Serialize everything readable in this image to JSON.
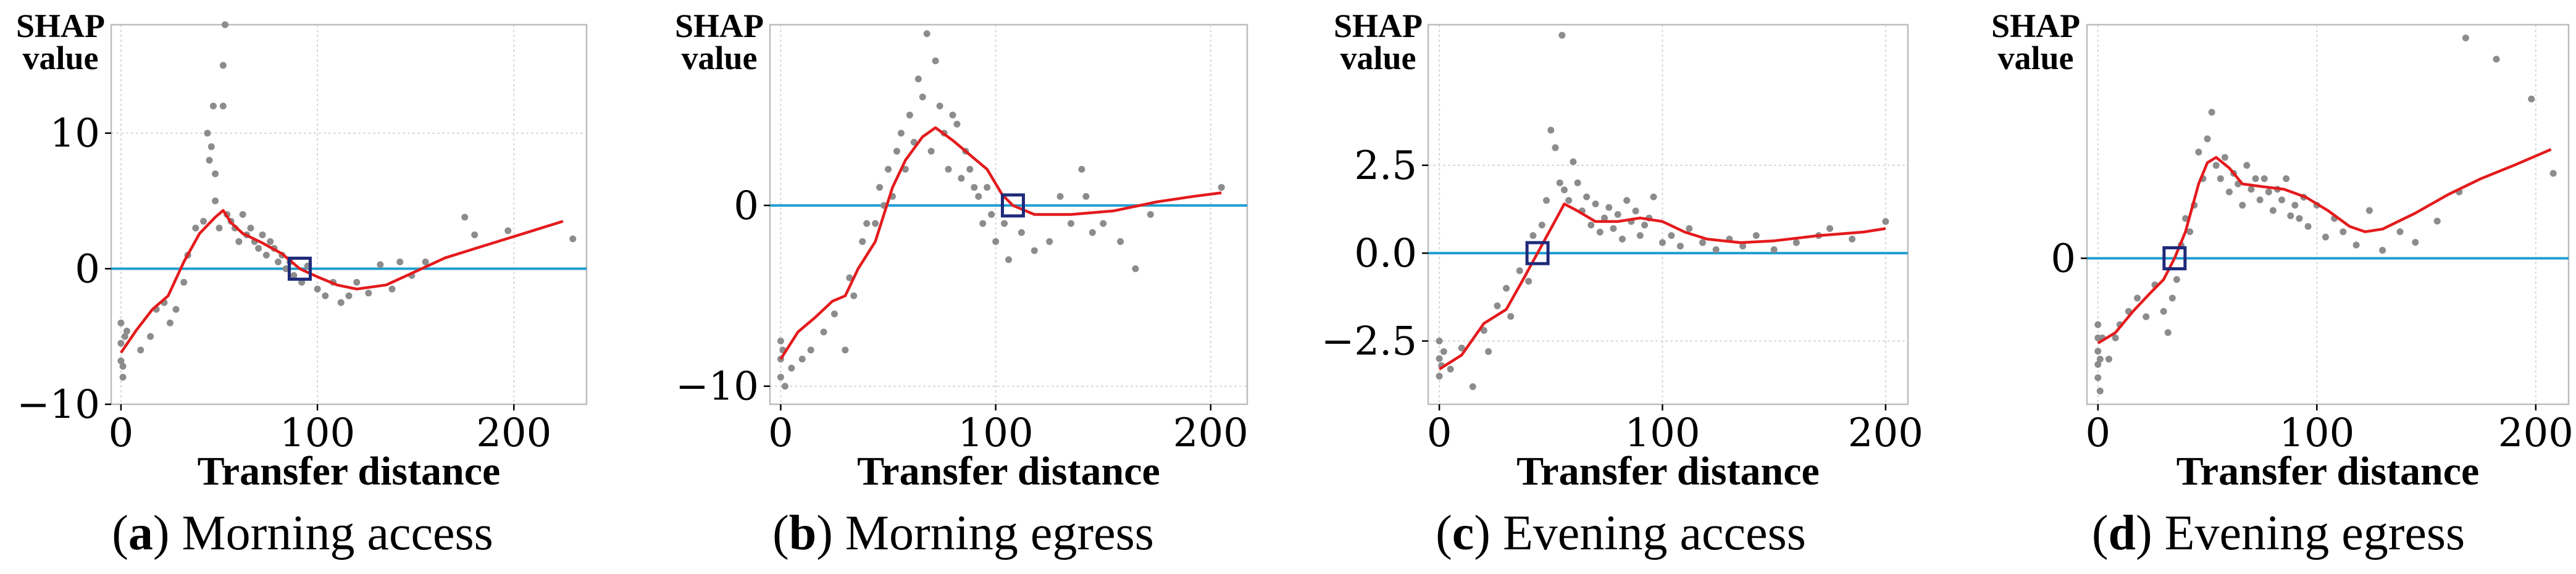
{
  "figure": {
    "background": "#ffffff"
  },
  "style": {
    "scatter": "#8c8c8c",
    "trend": "#e41a1c",
    "baseline": "#1f9ed1",
    "marker": "#1f2a7a",
    "grid": "#d9d9d9",
    "frame": "#bdbdbd"
  },
  "chart_data": [
    {
      "type": "scatter",
      "panel_label": "a",
      "title": "Morning access",
      "ylabel_line1": "SHAP",
      "ylabel_line2": "value",
      "xlabel": "Transfer distance",
      "xlim": [
        -5,
        237
      ],
      "ylim": [
        -10,
        18
      ],
      "xticks": [
        0,
        100,
        200
      ],
      "yticks": [
        -10,
        0,
        10
      ],
      "ytick_labels": [
        "−10",
        "0",
        "10"
      ],
      "baseline": 0,
      "marker_point": [
        91,
        0
      ],
      "trend": [
        [
          0,
          -6.2
        ],
        [
          8,
          -4.5
        ],
        [
          16,
          -3
        ],
        [
          24,
          -2
        ],
        [
          32,
          0.5
        ],
        [
          40,
          2.6
        ],
        [
          48,
          3.8
        ],
        [
          52,
          4.3
        ],
        [
          56,
          3.4
        ],
        [
          62,
          2.6
        ],
        [
          72,
          1.9
        ],
        [
          82,
          1.1
        ],
        [
          91,
          0
        ],
        [
          100,
          -0.6
        ],
        [
          110,
          -1.2
        ],
        [
          120,
          -1.5
        ],
        [
          135,
          -1.2
        ],
        [
          150,
          -0.2
        ],
        [
          165,
          0.8
        ],
        [
          185,
          1.7
        ],
        [
          205,
          2.6
        ],
        [
          225,
          3.5
        ]
      ],
      "points": [
        [
          0,
          -4
        ],
        [
          0,
          -5.5
        ],
        [
          0,
          -6.8
        ],
        [
          1,
          -8
        ],
        [
          1,
          -7.2
        ],
        [
          2,
          -5
        ],
        [
          3,
          -4.6
        ],
        [
          10,
          -6
        ],
        [
          15,
          -5
        ],
        [
          18,
          -3
        ],
        [
          22,
          -2.5
        ],
        [
          25,
          -4
        ],
        [
          28,
          -3
        ],
        [
          32,
          -1
        ],
        [
          34,
          1
        ],
        [
          38,
          3
        ],
        [
          42,
          3.5
        ],
        [
          44,
          10
        ],
        [
          45,
          8
        ],
        [
          46,
          9
        ],
        [
          47,
          12
        ],
        [
          48,
          7
        ],
        [
          48,
          5
        ],
        [
          50,
          3
        ],
        [
          52,
          15
        ],
        [
          52,
          12
        ],
        [
          53,
          18
        ],
        [
          54,
          4
        ],
        [
          56,
          3.5
        ],
        [
          58,
          3
        ],
        [
          60,
          2
        ],
        [
          62,
          4
        ],
        [
          64,
          2.5
        ],
        [
          66,
          3
        ],
        [
          68,
          2
        ],
        [
          70,
          1.5
        ],
        [
          72,
          2.5
        ],
        [
          74,
          1
        ],
        [
          76,
          2
        ],
        [
          78,
          1.5
        ],
        [
          80,
          0.5
        ],
        [
          82,
          1
        ],
        [
          84,
          0
        ],
        [
          86,
          0.5
        ],
        [
          88,
          -0.5
        ],
        [
          92,
          -1
        ],
        [
          95,
          0.2
        ],
        [
          100,
          -1.5
        ],
        [
          104,
          -2
        ],
        [
          108,
          -1
        ],
        [
          112,
          -2.5
        ],
        [
          116,
          -2
        ],
        [
          120,
          -1
        ],
        [
          126,
          -1.8
        ],
        [
          132,
          0.3
        ],
        [
          138,
          -1.5
        ],
        [
          142,
          0.5
        ],
        [
          148,
          -0.5
        ],
        [
          155,
          0.5
        ],
        [
          175,
          3.8
        ],
        [
          180,
          2.5
        ],
        [
          197,
          2.8
        ],
        [
          230,
          2.2
        ]
      ]
    },
    {
      "type": "scatter",
      "panel_label": "b",
      "title": "Morning egress",
      "ylabel_line1": "SHAP",
      "ylabel_line2": "value",
      "xlabel": "Transfer distance",
      "xlim": [
        -5,
        217
      ],
      "ylim": [
        -11,
        10
      ],
      "xticks": [
        0,
        100,
        200
      ],
      "yticks": [
        -10,
        0
      ],
      "ytick_labels": [
        "−10",
        "0"
      ],
      "baseline": 0,
      "marker_point": [
        108,
        0
      ],
      "trend": [
        [
          0,
          -8.5
        ],
        [
          8,
          -7
        ],
        [
          16,
          -6.2
        ],
        [
          24,
          -5.3
        ],
        [
          30,
          -5
        ],
        [
          36,
          -3.5
        ],
        [
          44,
          -2
        ],
        [
          52,
          1
        ],
        [
          58,
          2.5
        ],
        [
          66,
          3.8
        ],
        [
          72,
          4.3
        ],
        [
          80,
          3.6
        ],
        [
          88,
          2.8
        ],
        [
          96,
          2
        ],
        [
          103,
          0.6
        ],
        [
          108,
          0
        ],
        [
          118,
          -0.5
        ],
        [
          135,
          -0.5
        ],
        [
          155,
          -0.3
        ],
        [
          175,
          0.2
        ],
        [
          192,
          0.5
        ],
        [
          205,
          0.7
        ]
      ],
      "points": [
        [
          0,
          -7.5
        ],
        [
          0,
          -8.5
        ],
        [
          0,
          -9.5
        ],
        [
          1,
          -8
        ],
        [
          2,
          -10
        ],
        [
          5,
          -9
        ],
        [
          10,
          -8.5
        ],
        [
          14,
          -8
        ],
        [
          20,
          -7
        ],
        [
          25,
          -6
        ],
        [
          30,
          -8
        ],
        [
          32,
          -4
        ],
        [
          34,
          -5
        ],
        [
          38,
          -2
        ],
        [
          40,
          -1
        ],
        [
          44,
          -1
        ],
        [
          46,
          1
        ],
        [
          48,
          0
        ],
        [
          50,
          2
        ],
        [
          52,
          0.5
        ],
        [
          54,
          3
        ],
        [
          56,
          4
        ],
        [
          58,
          2
        ],
        [
          60,
          5
        ],
        [
          62,
          3.5
        ],
        [
          64,
          7
        ],
        [
          66,
          6
        ],
        [
          68,
          9.5
        ],
        [
          70,
          3
        ],
        [
          72,
          8
        ],
        [
          74,
          5.5
        ],
        [
          76,
          4
        ],
        [
          78,
          2
        ],
        [
          80,
          5
        ],
        [
          82,
          4.5
        ],
        [
          84,
          1.5
        ],
        [
          86,
          3
        ],
        [
          88,
          2
        ],
        [
          90,
          1
        ],
        [
          92,
          0.5
        ],
        [
          94,
          -1
        ],
        [
          96,
          1
        ],
        [
          98,
          -0.5
        ],
        [
          100,
          -2
        ],
        [
          104,
          -1
        ],
        [
          106,
          -3
        ],
        [
          112,
          -1.5
        ],
        [
          118,
          -2.5
        ],
        [
          125,
          -2
        ],
        [
          130,
          0.5
        ],
        [
          135,
          -1
        ],
        [
          140,
          2
        ],
        [
          142,
          0.5
        ],
        [
          145,
          -1.5
        ],
        [
          150,
          -1
        ],
        [
          158,
          -2
        ],
        [
          165,
          -3.5
        ],
        [
          172,
          -0.5
        ],
        [
          205,
          1
        ]
      ]
    },
    {
      "type": "scatter",
      "panel_label": "c",
      "title": "Evening access",
      "ylabel_line1": "SHAP",
      "ylabel_line2": "value",
      "xlabel": "Transfer distance",
      "xlim": [
        -5,
        210
      ],
      "ylim": [
        -4.3,
        6.5
      ],
      "xticks": [
        0,
        100,
        200
      ],
      "yticks": [
        -2.5,
        0,
        2.5
      ],
      "ytick_labels": [
        "−2.5",
        "0.0",
        "2.5"
      ],
      "baseline": 0,
      "marker_point": [
        44,
        0
      ],
      "trend": [
        [
          0,
          -3.3
        ],
        [
          10,
          -2.9
        ],
        [
          20,
          -2
        ],
        [
          30,
          -1.6
        ],
        [
          38,
          -0.7
        ],
        [
          44,
          0
        ],
        [
          50,
          0.7
        ],
        [
          56,
          1.4
        ],
        [
          62,
          1.2
        ],
        [
          70,
          0.9
        ],
        [
          80,
          0.9
        ],
        [
          90,
          1
        ],
        [
          100,
          0.9
        ],
        [
          110,
          0.6
        ],
        [
          120,
          0.4
        ],
        [
          135,
          0.3
        ],
        [
          150,
          0.35
        ],
        [
          170,
          0.5
        ],
        [
          190,
          0.6
        ],
        [
          200,
          0.7
        ]
      ],
      "points": [
        [
          0,
          -2.5
        ],
        [
          0,
          -3
        ],
        [
          0,
          -3.5
        ],
        [
          1,
          -3.2
        ],
        [
          2,
          -2.8
        ],
        [
          5,
          -3.3
        ],
        [
          10,
          -2.7
        ],
        [
          15,
          -3.8
        ],
        [
          20,
          -2.2
        ],
        [
          22,
          -2.8
        ],
        [
          26,
          -1.5
        ],
        [
          30,
          -1
        ],
        [
          32,
          -1.8
        ],
        [
          36,
          -0.5
        ],
        [
          40,
          -0.8
        ],
        [
          42,
          0.5
        ],
        [
          46,
          0.8
        ],
        [
          48,
          1.5
        ],
        [
          50,
          3.5
        ],
        [
          52,
          3
        ],
        [
          54,
          2
        ],
        [
          55,
          6.2
        ],
        [
          56,
          1.8
        ],
        [
          58,
          1.5
        ],
        [
          60,
          2.6
        ],
        [
          62,
          2
        ],
        [
          64,
          1.2
        ],
        [
          66,
          1.6
        ],
        [
          68,
          0.8
        ],
        [
          70,
          1.4
        ],
        [
          72,
          0.6
        ],
        [
          74,
          1
        ],
        [
          76,
          1.3
        ],
        [
          78,
          0.7
        ],
        [
          80,
          1.1
        ],
        [
          82,
          0.4
        ],
        [
          84,
          1.5
        ],
        [
          86,
          0.9
        ],
        [
          88,
          1.2
        ],
        [
          90,
          0.5
        ],
        [
          92,
          0.8
        ],
        [
          94,
          1
        ],
        [
          96,
          1.6
        ],
        [
          100,
          0.3
        ],
        [
          104,
          0.5
        ],
        [
          108,
          0.2
        ],
        [
          112,
          0.7
        ],
        [
          118,
          0.3
        ],
        [
          124,
          0.1
        ],
        [
          130,
          0.4
        ],
        [
          136,
          0.2
        ],
        [
          142,
          0.5
        ],
        [
          150,
          0.1
        ],
        [
          160,
          0.3
        ],
        [
          170,
          0.5
        ],
        [
          175,
          0.7
        ],
        [
          185,
          0.4
        ],
        [
          200,
          0.9
        ]
      ]
    },
    {
      "type": "scatter",
      "panel_label": "d",
      "title": "Evening egress",
      "ylabel_line1": "SHAP",
      "ylabel_line2": "value",
      "xlabel": "Transfer distance",
      "xlim": [
        -5,
        215
      ],
      "ylim": [
        -5.5,
        8.8
      ],
      "xticks": [
        0,
        100,
        200
      ],
      "yticks": [
        0
      ],
      "ytick_labels": [
        "0"
      ],
      "baseline": 0,
      "marker_point": [
        35,
        0
      ],
      "trend": [
        [
          0,
          -3.2
        ],
        [
          8,
          -2.8
        ],
        [
          16,
          -2
        ],
        [
          24,
          -1.3
        ],
        [
          30,
          -0.8
        ],
        [
          35,
          0
        ],
        [
          40,
          1
        ],
        [
          46,
          2.8
        ],
        [
          50,
          3.6
        ],
        [
          54,
          3.8
        ],
        [
          60,
          3.4
        ],
        [
          66,
          2.8
        ],
        [
          75,
          2.7
        ],
        [
          85,
          2.6
        ],
        [
          95,
          2.3
        ],
        [
          105,
          1.8
        ],
        [
          115,
          1.2
        ],
        [
          122,
          1
        ],
        [
          130,
          1.1
        ],
        [
          145,
          1.7
        ],
        [
          160,
          2.4
        ],
        [
          175,
          3
        ],
        [
          190,
          3.5
        ],
        [
          207,
          4.1
        ]
      ],
      "points": [
        [
          0,
          -2.5
        ],
        [
          0,
          -3
        ],
        [
          0,
          -3.5
        ],
        [
          0,
          -4
        ],
        [
          0,
          -4.5
        ],
        [
          1,
          -5
        ],
        [
          1,
          -3.8
        ],
        [
          2,
          -3
        ],
        [
          5,
          -3.8
        ],
        [
          8,
          -3
        ],
        [
          10,
          -2.5
        ],
        [
          14,
          -2
        ],
        [
          18,
          -1.5
        ],
        [
          22,
          -2.2
        ],
        [
          26,
          -1
        ],
        [
          30,
          -2
        ],
        [
          32,
          -2.8
        ],
        [
          34,
          -1.5
        ],
        [
          36,
          -0.8
        ],
        [
          38,
          0.5
        ],
        [
          40,
          1.5
        ],
        [
          42,
          1
        ],
        [
          44,
          2
        ],
        [
          46,
          4
        ],
        [
          48,
          3
        ],
        [
          50,
          4.5
        ],
        [
          52,
          5.5
        ],
        [
          54,
          3.5
        ],
        [
          56,
          3
        ],
        [
          58,
          3.8
        ],
        [
          60,
          2.5
        ],
        [
          62,
          3.2
        ],
        [
          64,
          2.8
        ],
        [
          66,
          2
        ],
        [
          68,
          3.5
        ],
        [
          70,
          2.6
        ],
        [
          72,
          3
        ],
        [
          74,
          2.2
        ],
        [
          76,
          3
        ],
        [
          78,
          2.5
        ],
        [
          80,
          1.8
        ],
        [
          82,
          2.6
        ],
        [
          84,
          2.2
        ],
        [
          86,
          3
        ],
        [
          88,
          1.6
        ],
        [
          90,
          2
        ],
        [
          92,
          1.5
        ],
        [
          94,
          2.3
        ],
        [
          96,
          1.2
        ],
        [
          100,
          2
        ],
        [
          104,
          0.8
        ],
        [
          108,
          1.5
        ],
        [
          112,
          1
        ],
        [
          118,
          0.5
        ],
        [
          124,
          1.8
        ],
        [
          130,
          0.3
        ],
        [
          138,
          1
        ],
        [
          145,
          0.6
        ],
        [
          155,
          1.4
        ],
        [
          165,
          2.5
        ],
        [
          168,
          8.3
        ],
        [
          182,
          7.5
        ],
        [
          198,
          6
        ],
        [
          208,
          3.2
        ]
      ]
    }
  ]
}
